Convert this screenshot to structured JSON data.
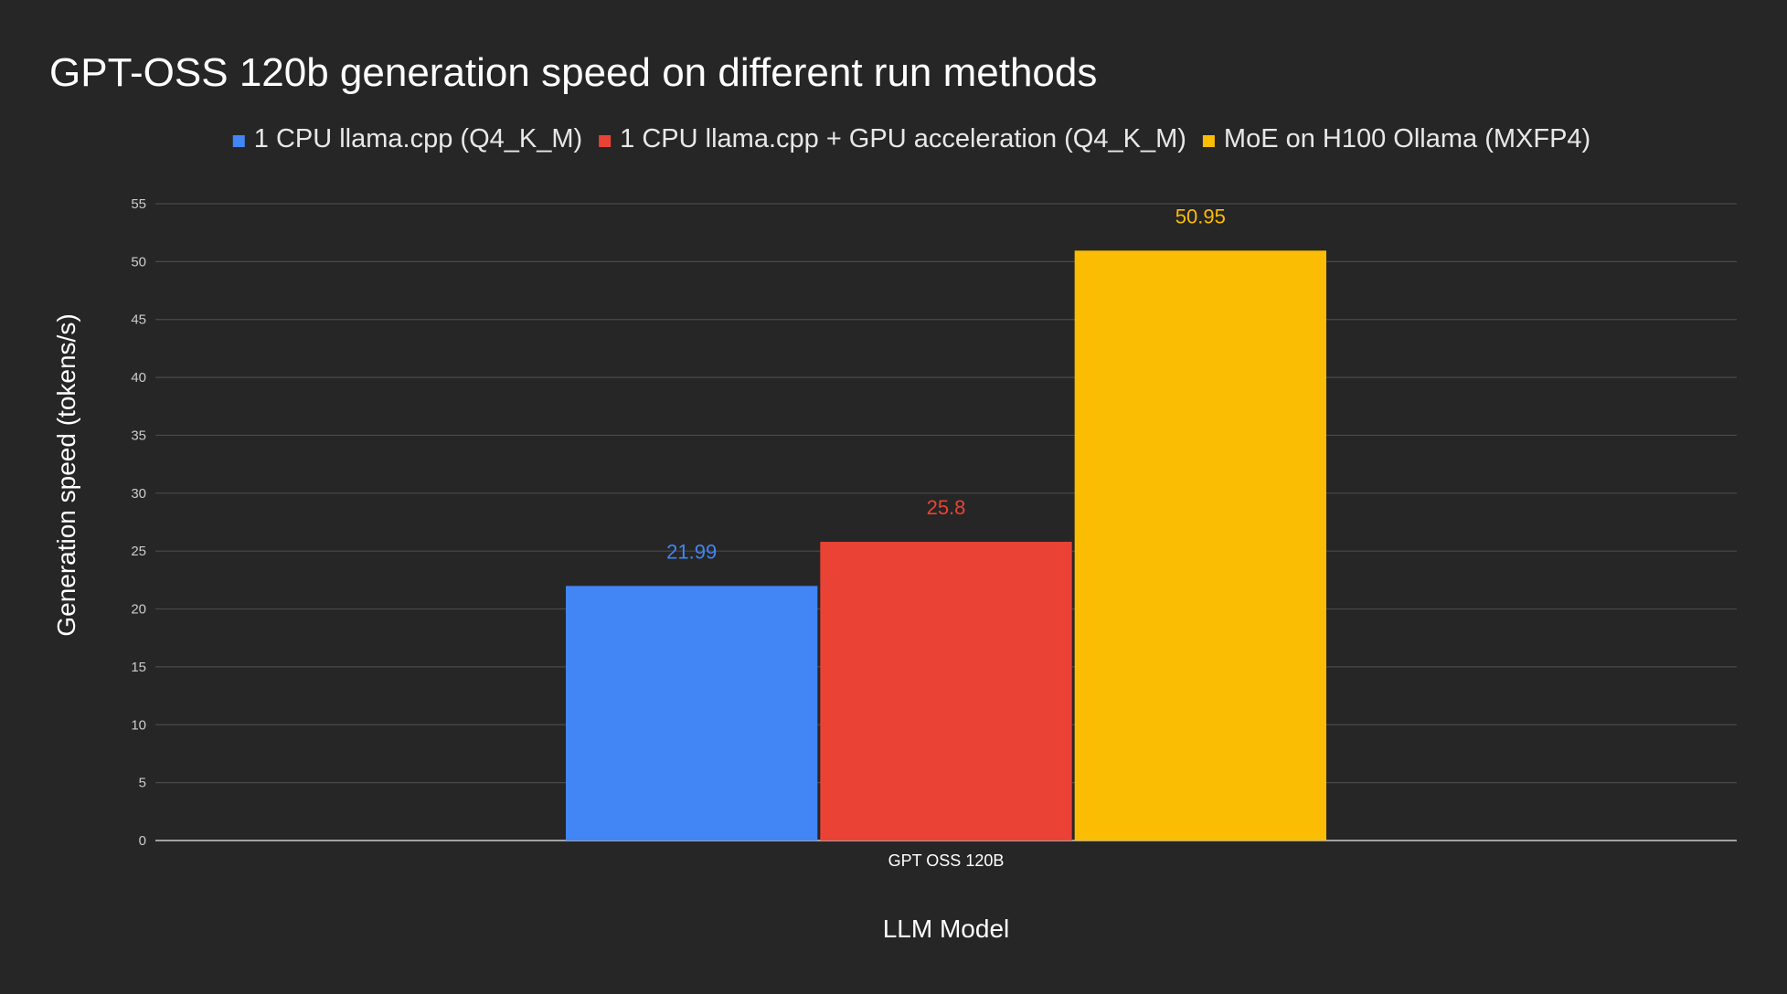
{
  "chart_data": {
    "type": "bar",
    "title": "GPT-OSS 120b generation speed on different run methods",
    "xlabel": "LLM Model",
    "ylabel": "Generation speed (tokens/s)",
    "categories": [
      "GPT OSS 120B"
    ],
    "ylim": [
      0,
      55
    ],
    "yticks": [
      0,
      5,
      10,
      15,
      20,
      25,
      30,
      35,
      40,
      45,
      50,
      55
    ],
    "grid": true,
    "legend_position": "top",
    "series": [
      {
        "name": "1 CPU llama.cpp (Q4_K_M)",
        "values": [
          21.99
        ],
        "labels": [
          "21.99"
        ],
        "color": "#4285F4"
      },
      {
        "name": "1 CPU llama.cpp + GPU acceleration (Q4_K_M)",
        "values": [
          25.8
        ],
        "labels": [
          "25.8"
        ],
        "color": "#EA4335"
      },
      {
        "name": "MoE on H100 Ollama (MXFP4)",
        "values": [
          50.95
        ],
        "labels": [
          "50.95"
        ],
        "color": "#FBBC04"
      }
    ]
  },
  "colors": {
    "background": "#262626",
    "text": "#FFFFFF",
    "tick_text": "#CCCCCC",
    "grid": "#4A4A4A",
    "axis": "#CCCCCC"
  }
}
